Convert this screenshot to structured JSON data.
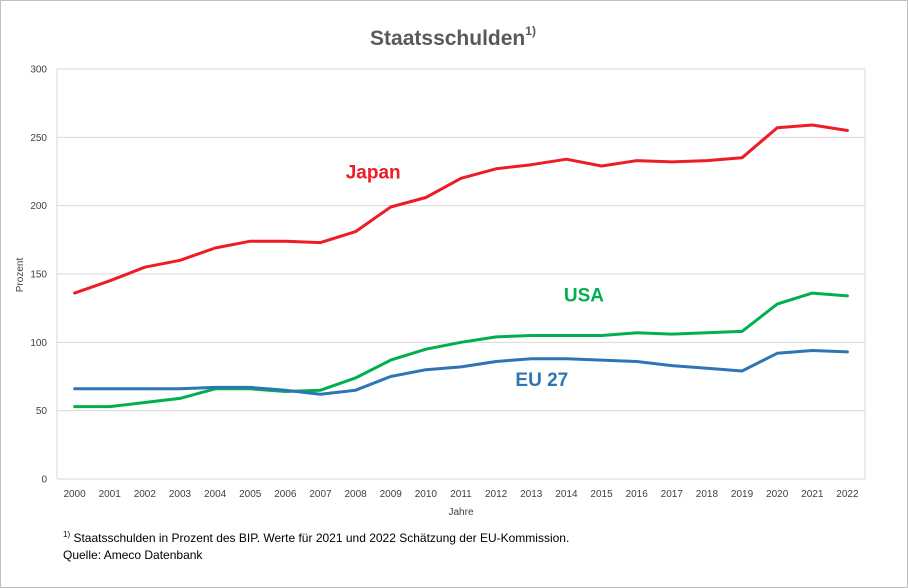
{
  "chart_data": {
    "type": "line",
    "title": "Staatsschulden",
    "title_superscript": "1)",
    "xlabel": "Jahre",
    "ylabel": "Prozent",
    "ylim": [
      0,
      300
    ],
    "yticks": [
      0,
      50,
      100,
      150,
      200,
      250,
      300
    ],
    "grid": true,
    "legend": "inline labels",
    "x": [
      "2000",
      "2001",
      "2002",
      "2003",
      "2004",
      "2005",
      "2006",
      "2007",
      "2008",
      "2009",
      "2010",
      "2011",
      "2012",
      "2013",
      "2014",
      "2015",
      "2016",
      "2017",
      "2018",
      "2019",
      "2020",
      "2021",
      "2022"
    ],
    "series": [
      {
        "name": "Japan",
        "color": "#ee1c25",
        "values": [
          136,
          145,
          155,
          160,
          169,
          174,
          174,
          173,
          181,
          199,
          206,
          220,
          227,
          230,
          234,
          229,
          233,
          232,
          233,
          235,
          257,
          259,
          255
        ]
      },
      {
        "name": "USA",
        "color": "#00b050",
        "values": [
          53,
          53,
          56,
          59,
          66,
          66,
          64,
          65,
          74,
          87,
          95,
          100,
          104,
          105,
          105,
          105,
          107,
          106,
          107,
          108,
          128,
          136,
          134
        ]
      },
      {
        "name": "EU 27",
        "color": "#2e75b6",
        "values": [
          66,
          66,
          66,
          66,
          67,
          67,
          65,
          62,
          65,
          75,
          80,
          82,
          86,
          88,
          88,
          87,
          86,
          83,
          81,
          79,
          92,
          94,
          93
        ]
      }
    ]
  },
  "footnote": {
    "marker": "1)",
    "text": " Staatsschulden in Prozent des BIP. Werte für 2021 und 2022 Schätzung der EU-Kommission."
  },
  "source": "Quelle: Ameco Datenbank"
}
